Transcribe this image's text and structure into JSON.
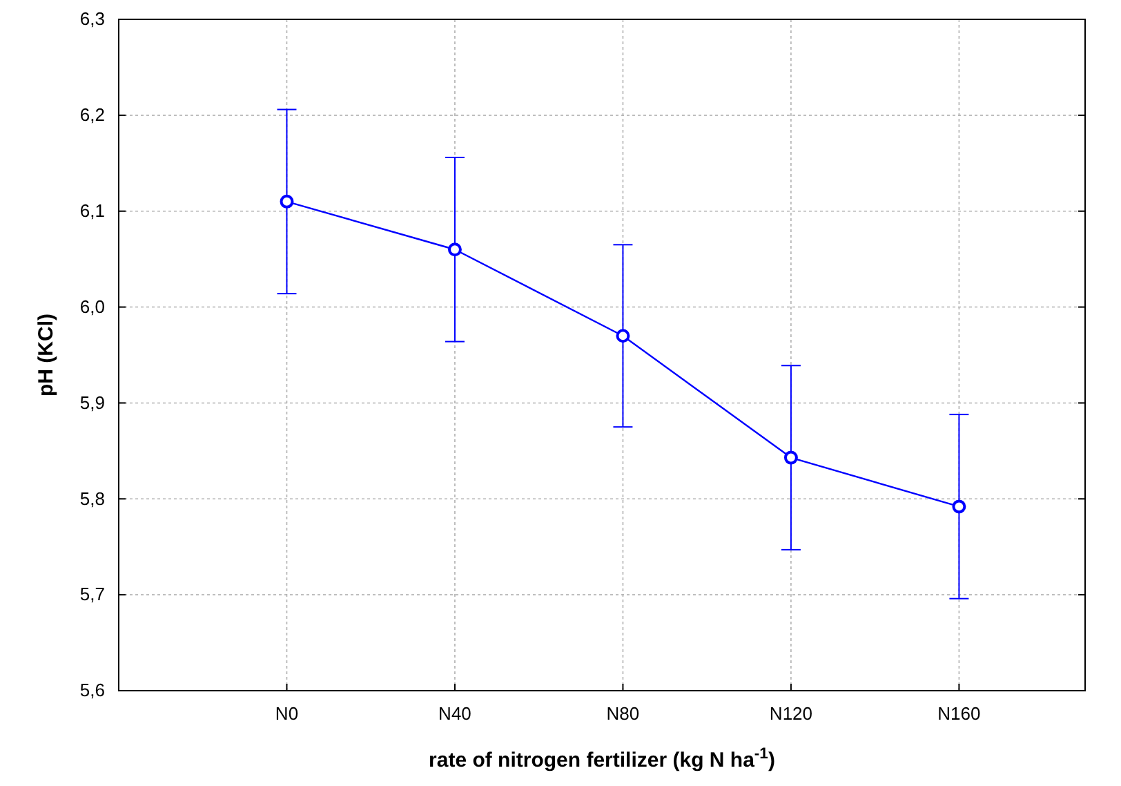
{
  "chart_data": {
    "type": "line",
    "xlabel": "rate of nitrogen fertilizer (kg N ha$^{-1}$)",
    "ylabel": "pH (KCl)",
    "categories": [
      "N0",
      "N40",
      "N80",
      "N120",
      "N160"
    ],
    "series": [
      {
        "color": "#0000ff",
        "values": [
          6.11,
          6.06,
          5.97,
          5.843,
          5.792
        ],
        "errors": [
          0.096,
          0.096,
          0.095,
          0.096,
          0.096
        ]
      }
    ],
    "ylim": [
      5.6,
      6.3
    ],
    "yticks": [
      {
        "value": 5.6,
        "label": "5,6"
      },
      {
        "value": 5.7,
        "label": "5,7"
      },
      {
        "value": 5.8,
        "label": "5,8"
      },
      {
        "value": 5.9,
        "label": "5,9"
      },
      {
        "value": 6.0,
        "label": "6,0"
      },
      {
        "value": 6.1,
        "label": "6,1"
      },
      {
        "value": 6.2,
        "label": "6,2"
      },
      {
        "value": 6.3,
        "label": "6,3"
      }
    ],
    "grid": true,
    "marker": "circle",
    "line_style": "solid"
  }
}
